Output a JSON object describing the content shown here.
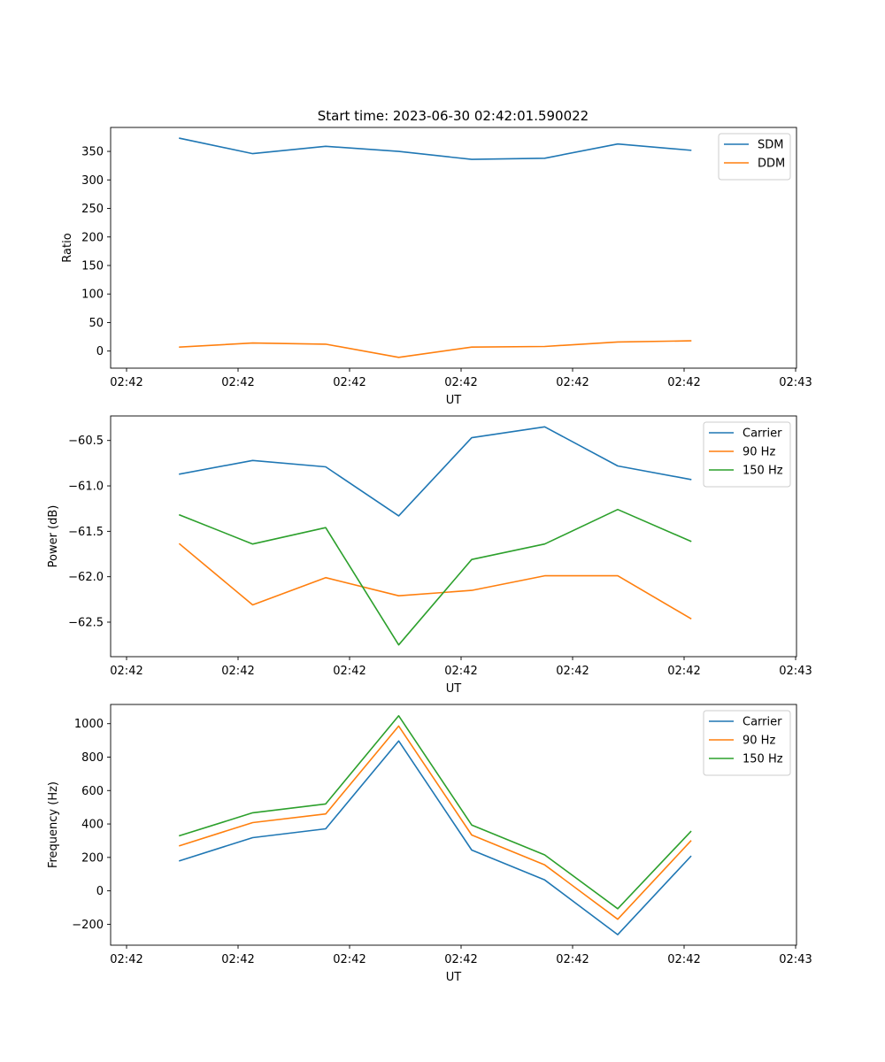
{
  "figure": {
    "title": "Start time: 2023-06-30 02:42:01.590022"
  },
  "colors": {
    "blue": "#1f77b4",
    "orange": "#ff7f0e",
    "green": "#2ca02c",
    "axes": "#000000",
    "legend_border": "#cccccc"
  },
  "chart_data": [
    {
      "type": "line",
      "title": "Start time: 2023-06-30 02:42:01.590022",
      "xlabel": "UT",
      "ylabel": "Ratio",
      "x_tick_labels": [
        "02:42",
        "02:42",
        "02:42",
        "02:42",
        "02:42",
        "02:42",
        "02:43"
      ],
      "x_points": 8,
      "ylim": [
        -30,
        392
      ],
      "y_ticks": [
        0,
        50,
        100,
        150,
        200,
        250,
        300,
        350
      ],
      "y_tick_labels": [
        "0",
        "50",
        "100",
        "150",
        "200",
        "250",
        "300",
        "350"
      ],
      "grid": false,
      "legend": "top-right",
      "series": [
        {
          "name": "SDM",
          "color": "#1f77b4",
          "values": [
            373,
            346,
            359,
            350,
            336,
            338,
            363,
            352
          ]
        },
        {
          "name": "DDM",
          "color": "#ff7f0e",
          "values": [
            7,
            14,
            12,
            -11,
            7,
            8,
            16,
            18
          ]
        }
      ]
    },
    {
      "type": "line",
      "title": "",
      "xlabel": "UT",
      "ylabel": "Power (dB)",
      "x_tick_labels": [
        "02:42",
        "02:42",
        "02:42",
        "02:42",
        "02:42",
        "02:42",
        "02:43"
      ],
      "x_points": 8,
      "ylim": [
        -62.88,
        -60.23
      ],
      "y_ticks": [
        -60.5,
        -61.0,
        -61.5,
        -62.0,
        -62.5
      ],
      "y_tick_labels": [
        "−60.5",
        "−61.0",
        "−61.5",
        "−62.0",
        "−62.5"
      ],
      "grid": false,
      "legend": "top-right",
      "series": [
        {
          "name": "Carrier",
          "color": "#1f77b4",
          "values": [
            -60.87,
            -60.72,
            -60.79,
            -61.33,
            -60.47,
            -60.35,
            -60.78,
            -60.93
          ]
        },
        {
          "name": "90 Hz",
          "color": "#ff7f0e",
          "values": [
            -61.64,
            -62.31,
            -62.01,
            -62.21,
            -62.15,
            -61.99,
            -61.99,
            -62.46
          ]
        },
        {
          "name": "150 Hz",
          "color": "#2ca02c",
          "values": [
            -61.32,
            -61.64,
            -61.46,
            -62.75,
            -61.81,
            -61.64,
            -61.26,
            -61.61
          ]
        }
      ]
    },
    {
      "type": "line",
      "title": "",
      "xlabel": "UT",
      "ylabel": "Frequency (Hz)",
      "x_tick_labels": [
        "02:42",
        "02:42",
        "02:42",
        "02:42",
        "02:42",
        "02:42",
        "02:43"
      ],
      "x_points": 8,
      "ylim": [
        -325,
        1115
      ],
      "y_ticks": [
        -200,
        0,
        200,
        400,
        600,
        800,
        1000
      ],
      "y_tick_labels": [
        "−200",
        "0",
        "200",
        "400",
        "600",
        "800",
        "1000"
      ],
      "grid": false,
      "legend": "top-right",
      "series": [
        {
          "name": "Carrier",
          "color": "#1f77b4",
          "values": [
            180,
            318,
            371,
            897,
            244,
            65,
            -262,
            206
          ]
        },
        {
          "name": "90 Hz",
          "color": "#ff7f0e",
          "values": [
            270,
            408,
            460,
            986,
            334,
            155,
            -170,
            298
          ]
        },
        {
          "name": "150 Hz",
          "color": "#2ca02c",
          "values": [
            330,
            467,
            520,
            1047,
            394,
            215,
            -107,
            355
          ]
        }
      ]
    }
  ]
}
